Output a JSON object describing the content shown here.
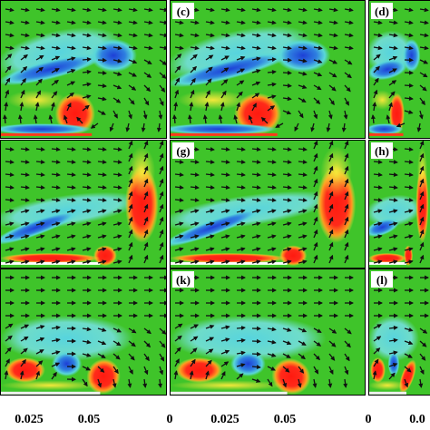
{
  "figure": {
    "panels": [
      {
        "row": 0,
        "col": 0,
        "label": "",
        "slab": "top"
      },
      {
        "row": 0,
        "col": 1,
        "label": "(c)",
        "slab": "top"
      },
      {
        "row": 0,
        "col": 2,
        "label": "(d)",
        "slab": "top"
      },
      {
        "row": 1,
        "col": 0,
        "label": "",
        "slab": "mid"
      },
      {
        "row": 1,
        "col": 1,
        "label": "(g)",
        "slab": "mid"
      },
      {
        "row": 1,
        "col": 2,
        "label": "(h)",
        "slab": "mid"
      },
      {
        "row": 2,
        "col": 0,
        "label": "",
        "slab": "bottom"
      },
      {
        "row": 2,
        "col": 1,
        "label": "(k)",
        "slab": "bottom"
      },
      {
        "row": 2,
        "col": 2,
        "label": "(l)",
        "slab": "bottom"
      }
    ],
    "x_ticks": [
      "0.025",
      "0.05",
      "0",
      "0.025",
      "0.05",
      "0",
      "0.0"
    ],
    "colors": {
      "field_background": "#3fc42a",
      "positive_vortex": "#ff2a1a",
      "negative_vortex": "#1d3fd6",
      "cyan_band": "#5ad7d9",
      "yellow_band": "#f4e83a",
      "arrow": "#111111"
    }
  }
}
